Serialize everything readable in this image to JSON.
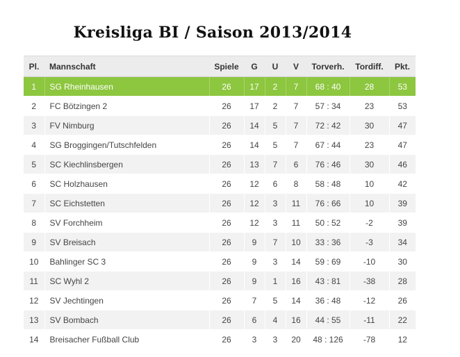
{
  "title": "Kreisliga BI / Saison 2013/2014",
  "colors": {
    "leader_row": "#8dc63f",
    "header_bg": "#ececec",
    "alt_row": "#f2f2f2"
  },
  "columns": [
    "Pl.",
    "Mannschaft",
    "Spiele",
    "G",
    "U",
    "V",
    "Torverh.",
    "Tordiff.",
    "Pkt."
  ],
  "rows": [
    [
      "1",
      "SG Rheinhausen",
      "26",
      "17",
      "2",
      "7",
      "68 : 40",
      "28",
      "53"
    ],
    [
      "2",
      "FC Bötzingen 2",
      "26",
      "17",
      "2",
      "7",
      "57 : 34",
      "23",
      "53"
    ],
    [
      "3",
      "FV Nimburg",
      "26",
      "14",
      "5",
      "7",
      "72 : 42",
      "30",
      "47"
    ],
    [
      "4",
      "SG Broggingen/Tutschfelden",
      "26",
      "14",
      "5",
      "7",
      "67 : 44",
      "23",
      "47"
    ],
    [
      "5",
      "SC Kiechlinsbergen",
      "26",
      "13",
      "7",
      "6",
      "76 : 46",
      "30",
      "46"
    ],
    [
      "6",
      "SC Holzhausen",
      "26",
      "12",
      "6",
      "8",
      "58 : 48",
      "10",
      "42"
    ],
    [
      "7",
      "SC Eichstetten",
      "26",
      "12",
      "3",
      "11",
      "76 : 66",
      "10",
      "39"
    ],
    [
      "8",
      "SV Forchheim",
      "26",
      "12",
      "3",
      "11",
      "50 : 52",
      "-2",
      "39"
    ],
    [
      "9",
      "SV Breisach",
      "26",
      "9",
      "7",
      "10",
      "33 : 36",
      "-3",
      "34"
    ],
    [
      "10",
      "Bahlinger SC 3",
      "26",
      "9",
      "3",
      "14",
      "59 : 69",
      "-10",
      "30"
    ],
    [
      "11",
      "SC Wyhl 2",
      "26",
      "9",
      "1",
      "16",
      "43 : 81",
      "-38",
      "28"
    ],
    [
      "12",
      "SV Jechtingen",
      "26",
      "7",
      "5",
      "14",
      "36 : 48",
      "-12",
      "26"
    ],
    [
      "13",
      "SV Bombach",
      "26",
      "6",
      "4",
      "16",
      "44 : 55",
      "-11",
      "22"
    ],
    [
      "14",
      "Breisacher Fußball Club",
      "26",
      "3",
      "3",
      "20",
      "48 : 126",
      "-78",
      "12"
    ]
  ]
}
